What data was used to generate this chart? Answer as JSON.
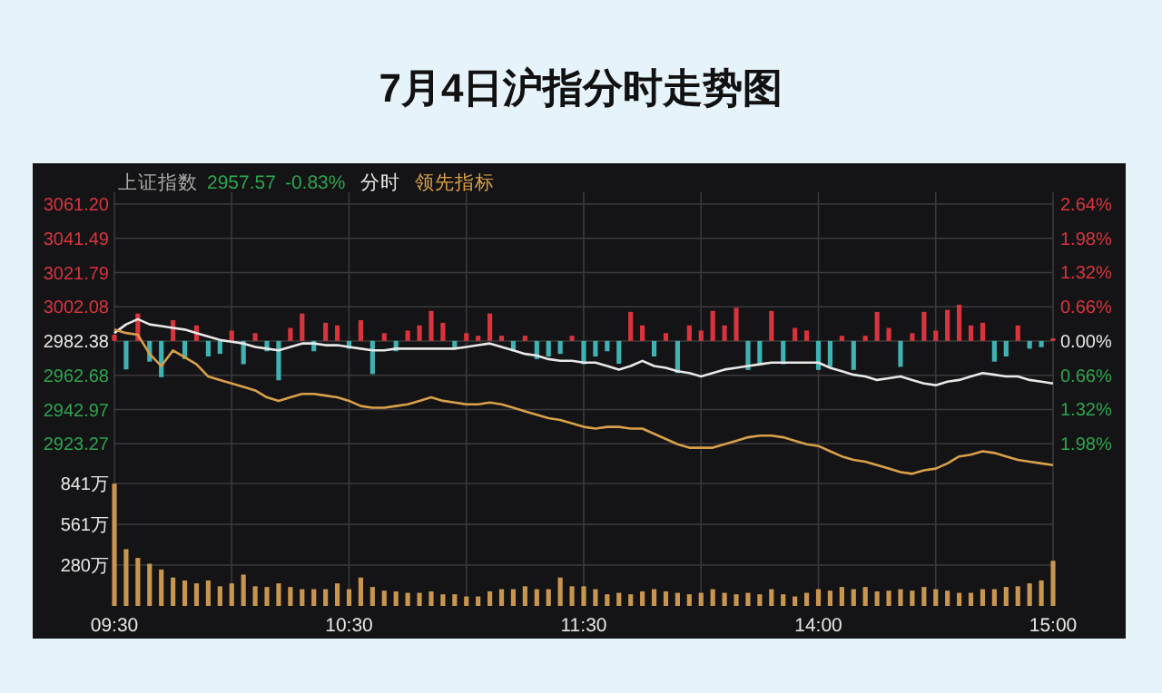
{
  "chart_data": [
    {
      "type": "line",
      "title": "7月4日沪指分时走势图",
      "annotations": [
        "上证指数",
        "2957.57",
        "-0.83%"
      ],
      "legend": "top left",
      "grid": true,
      "tick_labels": "y",
      "categories": [
        null,
        null,
        null,
        null,
        null,
        null,
        null,
        null,
        null,
        null,
        null,
        null,
        null,
        null,
        null,
        null,
        null,
        null,
        null,
        null,
        null,
        null,
        null,
        null,
        null,
        null,
        null,
        null,
        null,
        null,
        null,
        null,
        null,
        null,
        null,
        null,
        null,
        null,
        null,
        null,
        null,
        null,
        null,
        null,
        null,
        null,
        null,
        null,
        null,
        null,
        null,
        null,
        null,
        null,
        null,
        null,
        null,
        null,
        null,
        null,
        null,
        null,
        null,
        null,
        null,
        null,
        null,
        null,
        null,
        null,
        null,
        null,
        null,
        null,
        null,
        null,
        null,
        null,
        null,
        null,
        null
      ],
      "ylim": [
        2902,
        3068
      ],
      "yticks": [
        {
          "value": 3061.2,
          "label": "3061.20"
        },
        3041.49,
        3021.79,
        3002.08,
        2982.38,
        2962.68,
        2942.97,
        2923.27
      ],
      "y2lim": [
        -2.7,
        2.87
      ],
      "y2ticks": [
        {
          "value": 2.64,
          "label": "2.64%"
        },
        {
          "value": 1.98,
          "label": "1.98%"
        },
        {
          "value": 1.32,
          "label": "1.32%"
        },
        {
          "value": 0.66,
          "label": "0.66%"
        },
        {
          "value": 0,
          "label": "0.00%"
        },
        {
          "value": -0.66,
          "label": "0.66%"
        },
        {
          "value": -1.32,
          "label": "1.32%"
        },
        {
          "value": -1.98,
          "label": "1.98%"
        }
      ],
      "series": [
        {
          "type": "bar",
          "axis": "y2",
          "values": [
            0.12,
            -0.55,
            0.53,
            -0.4,
            -0.7,
            0.4,
            -0.35,
            0.3,
            -0.3,
            -0.25,
            0.2,
            -0.45,
            0.15,
            -0.2,
            -0.76,
            0.25,
            0.53,
            -0.2,
            0.35,
            0.3,
            -0.15,
            0.4,
            -0.64,
            0.15,
            -0.2,
            0.2,
            0.3,
            0.58,
            0.35,
            -0.15,
            0.15,
            0.1,
            0.53,
            0.1,
            -0.2,
            0.1,
            -0.35,
            -0.3,
            -0.25,
            0.1,
            -0.45,
            -0.3,
            -0.2,
            -0.44,
            0.56,
            0.3,
            -0.3,
            0.15,
            -0.62,
            0.3,
            0.2,
            0.58,
            0.3,
            0.64,
            -0.56,
            -0.45,
            0.58,
            -0.45,
            0.25,
            0.2,
            -0.56,
            -0.5,
            0.1,
            -0.56,
            0.1,
            0.56,
            0.25,
            -0.5,
            0.15,
            0.56,
            0.2,
            0.6,
            0.7,
            0.3,
            0.35,
            -0.4,
            -0.3,
            0.3,
            -0.15,
            -0.12,
            0.05
          ],
          "colors": [
            "#d9343e",
            "#3fb3b3",
            "#d9343e",
            "#3fb3b3",
            "#3fb3b3",
            "#d9343e",
            "#3fb3b3",
            "#d9343e",
            "#3fb3b3",
            "#3fb3b3",
            "#d9343e",
            "#3fb3b3",
            "#d9343e",
            "#3fb3b3",
            "#3fb3b3",
            "#d9343e",
            "#d9343e",
            "#3fb3b3",
            "#d9343e",
            "#d9343e",
            "#3fb3b3",
            "#d9343e",
            "#3fb3b3",
            "#d9343e",
            "#3fb3b3",
            "#d9343e",
            "#d9343e",
            "#d9343e",
            "#d9343e",
            "#3fb3b3",
            "#d9343e",
            "#d9343e",
            "#d9343e",
            "#d9343e",
            "#3fb3b3",
            "#d9343e",
            "#3fb3b3",
            "#3fb3b3",
            "#3fb3b3",
            "#d9343e",
            "#3fb3b3",
            "#3fb3b3",
            "#3fb3b3",
            "#3fb3b3",
            "#d9343e",
            "#d9343e",
            "#3fb3b3",
            "#d9343e",
            "#3fb3b3",
            "#d9343e",
            "#d9343e",
            "#d9343e",
            "#d9343e",
            "#d9343e",
            "#3fb3b3",
            "#3fb3b3",
            "#d9343e",
            "#3fb3b3",
            "#d9343e",
            "#d9343e",
            "#3fb3b3",
            "#3fb3b3",
            "#d9343e",
            "#3fb3b3",
            "#d9343e",
            "#d9343e",
            "#d9343e",
            "#3fb3b3",
            "#d9343e",
            "#d9343e",
            "#d9343e",
            "#d9343e",
            "#d9343e",
            "#d9343e",
            "#d9343e",
            "#3fb3b3",
            "#3fb3b3",
            "#d9343e",
            "#3fb3b3",
            "#3fb3b3",
            "#d9343e"
          ]
        },
        {
          "name": "分时",
          "color": "#e8e8e8",
          "values": [
            2987,
            2992,
            2995,
            2992,
            2991,
            2990,
            2989,
            2987,
            2985,
            2983,
            2982,
            2981,
            2979,
            2978,
            2977,
            2979,
            2981,
            2981,
            2980,
            2980,
            2979,
            2978,
            2977,
            2977,
            2978,
            2978,
            2978,
            2978,
            2978,
            2978,
            2979,
            2980,
            2981,
            2979,
            2977,
            2975,
            2974,
            2972,
            2971,
            2971,
            2970,
            2970,
            2968,
            2966,
            2968,
            2971,
            2968,
            2967,
            2965,
            2964,
            2962,
            2964,
            2966,
            2967,
            2968,
            2969,
            2970,
            2970,
            2970,
            2970,
            2970,
            2967,
            2965,
            2963,
            2962,
            2960,
            2961,
            2962,
            2960,
            2958,
            2957,
            2959,
            2960,
            2962,
            2964,
            2963,
            2962,
            2962,
            2960,
            2959,
            2958
          ]
        },
        {
          "name": "领先指标",
          "color": "#d9a04a",
          "values": [
            2989,
            2987,
            2986,
            2975,
            2968,
            2977,
            2973,
            2969,
            2962,
            2960,
            2958,
            2956,
            2954,
            2950,
            2948,
            2950,
            2952,
            2952,
            2951,
            2950,
            2948,
            2945,
            2944,
            2944,
            2945,
            2946,
            2948,
            2950,
            2948,
            2947,
            2946,
            2946,
            2947,
            2946,
            2944,
            2942,
            2940,
            2938,
            2937,
            2935,
            2933,
            2932,
            2933,
            2933,
            2932,
            2932,
            2929,
            2926,
            2923,
            2921,
            2921,
            2921,
            2923,
            2925,
            2927,
            2928,
            2928,
            2927,
            2925,
            2923,
            2922,
            2919,
            2916,
            2914,
            2913,
            2911,
            2909,
            2907,
            2906,
            2908,
            2909,
            2912,
            2916,
            2917,
            2919,
            2918,
            2916,
            2914,
            2913,
            2912,
            2911
          ]
        }
      ]
    },
    {
      "type": "bar",
      "color": "#c8964f",
      "grid": true,
      "categories": [
        "09:30",
        null,
        null,
        null,
        null,
        null,
        null,
        null,
        null,
        null,
        null,
        null,
        null,
        null,
        null,
        null,
        null,
        null,
        null,
        null,
        "10:30",
        null,
        null,
        null,
        null,
        null,
        null,
        null,
        null,
        null,
        null,
        null,
        null,
        null,
        null,
        null,
        null,
        null,
        null,
        null,
        "11:30",
        null,
        null,
        null,
        null,
        null,
        null,
        null,
        null,
        null,
        null,
        null,
        null,
        null,
        null,
        null,
        null,
        null,
        null,
        null,
        "14:00",
        null,
        null,
        null,
        null,
        null,
        null,
        null,
        null,
        null,
        null,
        null,
        null,
        null,
        null,
        null,
        null,
        null,
        null,
        null,
        "15:00"
      ],
      "ylim": [
        0,
        860
      ],
      "yticks": [
        {
          "value": 280,
          "label": "280万"
        },
        {
          "value": 561,
          "label": "561万"
        },
        {
          "value": 841,
          "label": "841万"
        }
      ],
      "values": [
        840,
        390,
        330,
        290,
        250,
        195,
        175,
        155,
        175,
        135,
        155,
        215,
        135,
        130,
        155,
        130,
        115,
        115,
        115,
        155,
        115,
        195,
        130,
        105,
        100,
        90,
        90,
        100,
        80,
        80,
        65,
        65,
        100,
        115,
        115,
        135,
        115,
        115,
        195,
        135,
        135,
        115,
        80,
        90,
        80,
        100,
        115,
        100,
        90,
        80,
        90,
        115,
        90,
        80,
        90,
        80,
        115,
        80,
        65,
        90,
        115,
        105,
        130,
        115,
        130,
        100,
        105,
        115,
        105,
        130,
        115,
        105,
        90,
        90,
        115,
        115,
        130,
        135,
        155,
        175,
        310
      ]
    }
  ]
}
